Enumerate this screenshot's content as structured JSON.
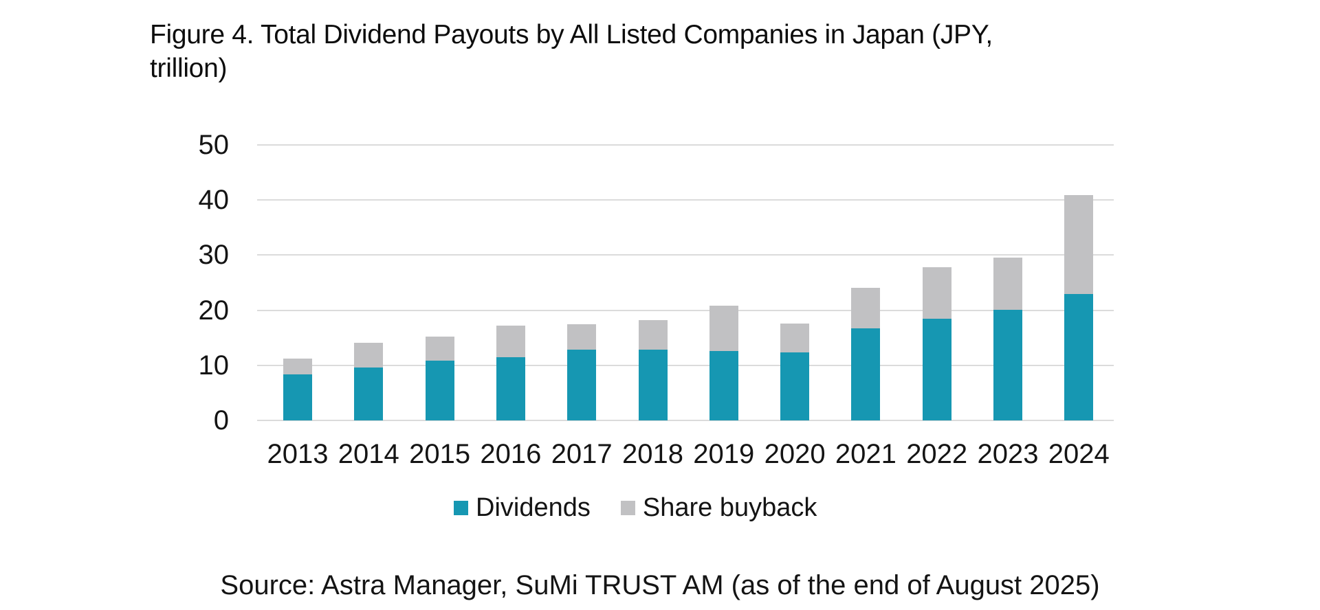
{
  "figure": {
    "title_line1": "Figure 4. Total Dividend Payouts by All Listed Companies in Japan (JPY,",
    "title_line2": "trillion)",
    "source": "Source: Astra Manager, SuMi TRUST AM (as of the end of August 2025)"
  },
  "colors": {
    "dividends": "#1697B2",
    "share_buyback": "#C1C1C3",
    "gridline": "#DBDBDB",
    "text": "#141414"
  },
  "legend": [
    {
      "label": "Dividends",
      "series_key": "dividends"
    },
    {
      "label": "Share buyback",
      "series_key": "share_buyback"
    }
  ],
  "chart_data": {
    "type": "bar",
    "stacked": true,
    "title": "Figure 4. Total Dividend Payouts by All Listed Companies in Japan (JPY, trillion)",
    "xlabel": "",
    "ylabel": "",
    "categories": [
      "2013",
      "2014",
      "2015",
      "2016",
      "2017",
      "2018",
      "2019",
      "2020",
      "2021",
      "2022",
      "2023",
      "2024"
    ],
    "series": [
      {
        "name": "Dividends",
        "color": "#1697B2",
        "values": [
          8.3,
          9.6,
          10.9,
          11.5,
          12.8,
          12.8,
          12.6,
          12.3,
          16.7,
          18.4,
          20.1,
          22.9
        ]
      },
      {
        "name": "Share buyback",
        "color": "#C1C1C3",
        "values": [
          2.9,
          4.5,
          4.4,
          5.7,
          4.6,
          5.4,
          8.2,
          5.2,
          7.3,
          9.3,
          9.5,
          17.9
        ]
      }
    ],
    "totals": [
      11.2,
      14.1,
      15.3,
      17.2,
      17.4,
      18.2,
      20.8,
      17.5,
      24.0,
      27.7,
      29.6,
      40.8
    ],
    "ylim": [
      0,
      50
    ],
    "yticks": [
      0,
      10,
      20,
      30,
      40,
      50
    ],
    "grid": true,
    "legend_position": "bottom"
  }
}
